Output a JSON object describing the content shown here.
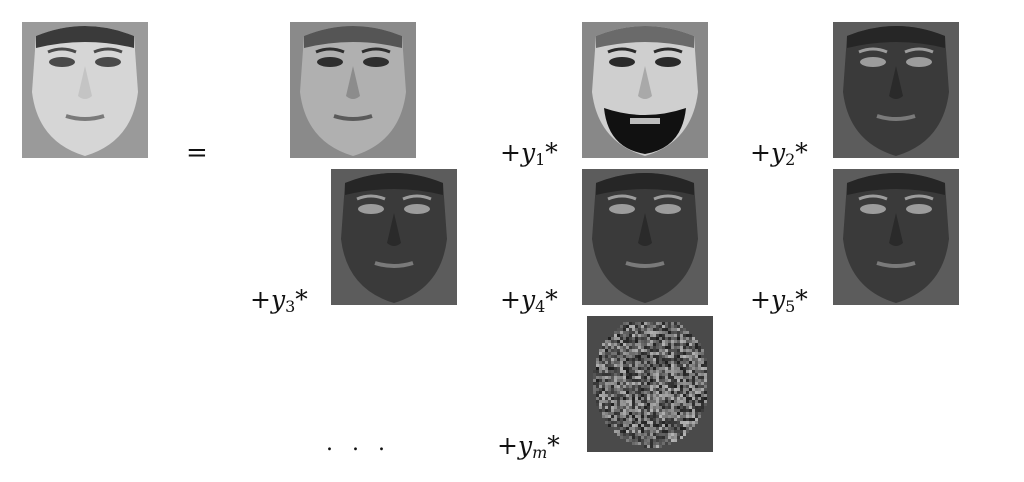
{
  "equation": {
    "equals": "=",
    "ellipsis": ". . .",
    "terms": [
      {
        "prefix": "+",
        "var": "y",
        "sub": "1",
        "op": "*"
      },
      {
        "prefix": "+",
        "var": "y",
        "sub": "2",
        "op": "*"
      },
      {
        "prefix": "+",
        "var": "y",
        "sub": "3",
        "op": "*"
      },
      {
        "prefix": "+",
        "var": "y",
        "sub": "4",
        "op": "*"
      },
      {
        "prefix": "+",
        "var": "y",
        "sub": "5",
        "op": "*"
      },
      {
        "prefix": "+",
        "var": "y",
        "sub": "m",
        "op": "*"
      }
    ]
  },
  "faces": [
    {
      "name": "original-face-image",
      "tone": "light"
    },
    {
      "name": "mean-face-image",
      "tone": "mid"
    },
    {
      "name": "eigenface-1-image",
      "tone": "bearded"
    },
    {
      "name": "eigenface-2-image",
      "tone": "dark"
    },
    {
      "name": "eigenface-3-image",
      "tone": "dark"
    },
    {
      "name": "eigenface-4-image",
      "tone": "dark"
    },
    {
      "name": "eigenface-5-image",
      "tone": "dark"
    },
    {
      "name": "eigenface-m-image",
      "tone": "noise"
    }
  ]
}
